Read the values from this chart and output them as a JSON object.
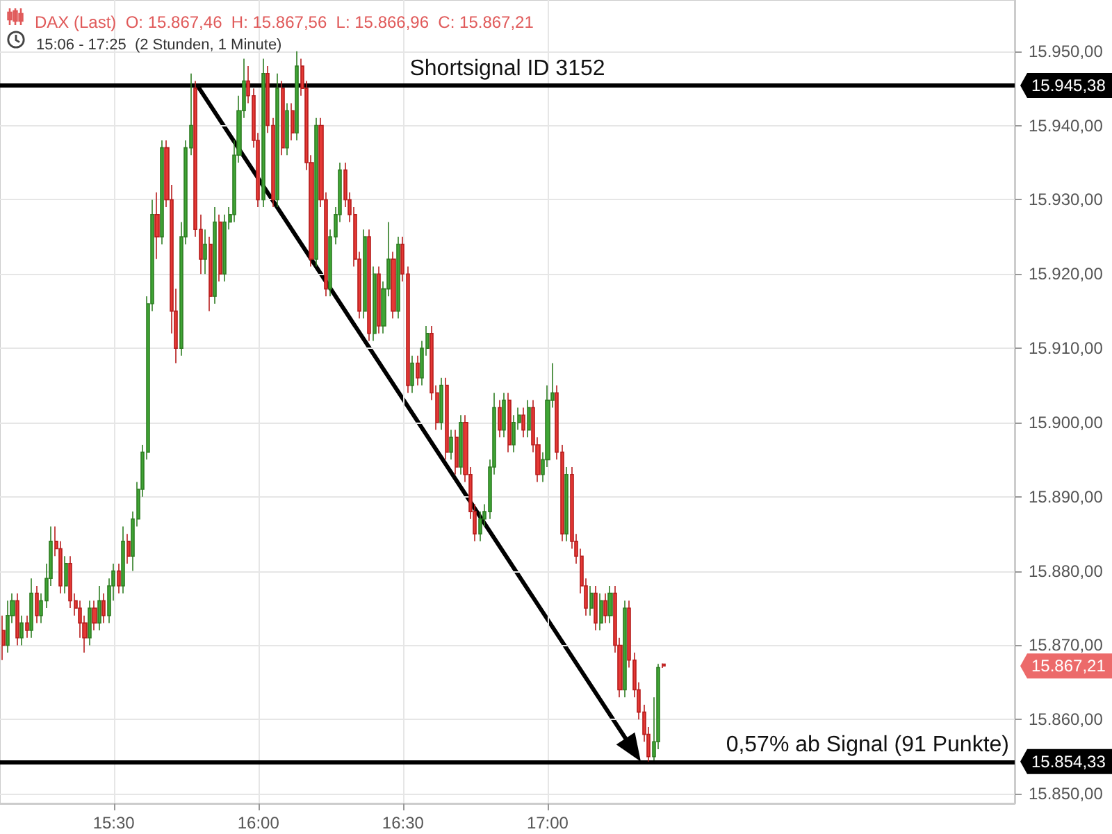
{
  "chart_data": {
    "type": "candlestick",
    "title": "DAX (Last)  O: 15.867,46  H: 15.867,56  L: 15.866,96  C: 15.867,21",
    "subtitle": "15:06 - 17:25  (2 Stunden, 1 Minute)",
    "annotations": [
      "15.945,38",
      "15.867,21",
      "15.854,33"
    ],
    "ref_lines": [
      {
        "axis": "y",
        "value": 15945.38,
        "label": "Shortsignal ID 3152",
        "color": "#000000"
      },
      {
        "axis": "y",
        "value": 15854.33,
        "label": "0,57% ab Signal (91 Punkte)",
        "color": "#000000"
      }
    ],
    "xlim": [
      15.1067,
      18.615
    ],
    "xticks": [
      {
        "value": 15.5,
        "label": "15:30"
      },
      {
        "value": 16,
        "label": "16:00"
      },
      {
        "value": 16.5,
        "label": "16:30"
      },
      {
        "value": 17,
        "label": "17:00"
      }
    ],
    "ylim": [
      15848.7,
      15956.9
    ],
    "yticks": [
      {
        "value": 15850,
        "label": "15.850,00"
      },
      {
        "value": 15860,
        "label": "15.860,00"
      },
      {
        "value": 15870,
        "label": "15.870,00"
      },
      {
        "value": 15880,
        "label": "15.880,00"
      },
      {
        "value": 15890,
        "label": "15.890,00"
      },
      {
        "value": 15900,
        "label": "15.900,00"
      },
      {
        "value": 15910,
        "label": "15.910,00"
      },
      {
        "value": 15920,
        "label": "15.920,00"
      },
      {
        "value": 15930,
        "label": "15.930,00"
      },
      {
        "value": 15940,
        "label": "15.940,00"
      },
      {
        "value": 15950,
        "label": "15.950,00"
      }
    ],
    "grid": true,
    "x": [
      15.1167,
      15.1333,
      15.15,
      15.1667,
      15.1833,
      15.2,
      15.2167,
      15.2333,
      15.25,
      15.2667,
      15.2833,
      15.3,
      15.3167,
      15.3333,
      15.35,
      15.3667,
      15.3833,
      15.4,
      15.4167,
      15.4333,
      15.45,
      15.4667,
      15.4833,
      15.5,
      15.5167,
      15.5333,
      15.55,
      15.5667,
      15.5833,
      15.6,
      15.6167,
      15.6333,
      15.65,
      15.6667,
      15.6833,
      15.7,
      15.7167,
      15.7333,
      15.75,
      15.7667,
      15.7833,
      15.8,
      15.8167,
      15.8333,
      15.85,
      15.8667,
      15.8833,
      15.9,
      15.9167,
      15.9333,
      15.95,
      15.9667,
      15.9833,
      16,
      16.0167,
      16.0333,
      16.05,
      16.0667,
      16.0833,
      16.1,
      16.1167,
      16.1333,
      16.15,
      16.1667,
      16.1833,
      16.2,
      16.2167,
      16.2333,
      16.25,
      16.2667,
      16.2833,
      16.3,
      16.3167,
      16.3333,
      16.35,
      16.3667,
      16.3833,
      16.4,
      16.4167,
      16.4333,
      16.45,
      16.4667,
      16.4833,
      16.5,
      16.5167,
      16.5333,
      16.55,
      16.5667,
      16.5833,
      16.6,
      16.6167,
      16.6333,
      16.65,
      16.6667,
      16.6833,
      16.7,
      16.7167,
      16.7333,
      16.75,
      16.7667,
      16.7833,
      16.8,
      16.8167,
      16.8333,
      16.85,
      16.8667,
      16.8833,
      16.9,
      16.9167,
      16.9333,
      16.95,
      16.9667,
      16.9833,
      17,
      17.0167,
      17.0333,
      17.05,
      17.0667,
      17.0833,
      17.1,
      17.1167,
      17.1333,
      17.15,
      17.1667,
      17.1833,
      17.2,
      17.2167,
      17.2333,
      17.25,
      17.2667,
      17.2833,
      17.3,
      17.3167,
      17.3333,
      17.35,
      17.3667,
      17.3833,
      17.4
    ],
    "ohlc": [
      [
        15872,
        15874,
        15868,
        15870
      ],
      [
        15870,
        15876,
        15869,
        15874
      ],
      [
        15874,
        15877,
        15873,
        15876
      ],
      [
        15876,
        15877,
        15870,
        15871
      ],
      [
        15871,
        15874,
        15870,
        15873
      ],
      [
        15873,
        15874,
        15871,
        15872
      ],
      [
        15872,
        15879,
        15871,
        15877
      ],
      [
        15877,
        15878,
        15873,
        15874
      ],
      [
        15874,
        15877,
        15873,
        15876
      ],
      [
        15876,
        15881,
        15875,
        15879
      ],
      [
        15879,
        15886,
        15878,
        15884
      ],
      [
        15884,
        15886,
        15882,
        15883
      ],
      [
        15883,
        15884,
        15877,
        15878
      ],
      [
        15878,
        15882,
        15877,
        15881
      ],
      [
        15881,
        15882,
        15875,
        15876
      ],
      [
        15876,
        15877,
        15874,
        15875
      ],
      [
        15875,
        15876,
        15871,
        15873
      ],
      [
        15873,
        15874,
        15869,
        15871
      ],
      [
        15871,
        15876,
        15870,
        15875
      ],
      [
        15875,
        15876,
        15872,
        15873
      ],
      [
        15873,
        15878,
        15872,
        15876
      ],
      [
        15876,
        15877,
        15873,
        15874
      ],
      [
        15874,
        15879,
        15873,
        15878
      ],
      [
        15878,
        15881,
        15876,
        15880
      ],
      [
        15880,
        15881,
        15877,
        15878
      ],
      [
        15878,
        15886,
        15877,
        15884
      ],
      [
        15884,
        15885,
        15881,
        15882
      ],
      [
        15882,
        15888,
        15880,
        15887
      ],
      [
        15887,
        15892,
        15886,
        15891
      ],
      [
        15891,
        15897,
        15890,
        15896
      ],
      [
        15896,
        15917,
        15895,
        15916
      ],
      [
        15916,
        15930,
        15915,
        15928
      ],
      [
        15928,
        15931,
        15922,
        15925
      ],
      [
        15925,
        15938,
        15924,
        15937
      ],
      [
        15937,
        15938,
        15929,
        15930
      ],
      [
        15930,
        15932,
        15912,
        15915
      ],
      [
        15915,
        15918,
        15908,
        15910
      ],
      [
        15910,
        15927,
        15909,
        15925
      ],
      [
        15925,
        15938,
        15924,
        15937
      ],
      [
        15937,
        15947,
        15936,
        15940
      ],
      [
        15945,
        15946,
        15925,
        15926
      ],
      [
        15926,
        15928,
        15920,
        15922
      ],
      [
        15922,
        15926,
        15920,
        15924
      ],
      [
        15924,
        15925,
        15915,
        15917
      ],
      [
        15917,
        15929,
        15916,
        15927
      ],
      [
        15927,
        15928,
        15919,
        15920
      ],
      [
        15920,
        15928,
        15919,
        15927
      ],
      [
        15927,
        15929,
        15926,
        15928
      ],
      [
        15928,
        15938,
        15927,
        15936
      ],
      [
        15936,
        15944,
        15935,
        15942
      ],
      [
        15942,
        15949,
        15941,
        15946
      ],
      [
        15946,
        15948,
        15943,
        15944
      ],
      [
        15944,
        15945,
        15937,
        15938
      ],
      [
        15938,
        15939,
        15929,
        15930
      ],
      [
        15930,
        15949,
        15929,
        15947
      ],
      [
        15947,
        15948,
        15939,
        15940
      ],
      [
        15940,
        15941,
        15929,
        15930
      ],
      [
        15930,
        15947,
        15929,
        15945
      ],
      [
        15945,
        15946,
        15936,
        15937
      ],
      [
        15937,
        15943,
        15936,
        15942
      ],
      [
        15942,
        15943,
        15938,
        15939
      ],
      [
        15939,
        15950,
        15938,
        15948
      ],
      [
        15948,
        15949,
        15944,
        15945
      ],
      [
        15945,
        15946,
        15934,
        15935
      ],
      [
        15935,
        15936,
        15921,
        15922
      ],
      [
        15922,
        15941,
        15921,
        15940
      ],
      [
        15940,
        15941,
        15929,
        15930
      ],
      [
        15930,
        15931,
        15917,
        15918
      ],
      [
        15918,
        15926,
        15917,
        15925
      ],
      [
        15925,
        15929,
        15924,
        15928
      ],
      [
        15928,
        15935,
        15927,
        15934
      ],
      [
        15934,
        15935,
        15929,
        15930
      ],
      [
        15930,
        15931,
        15927,
        15928
      ],
      [
        15928,
        15929,
        15921,
        15922
      ],
      [
        15922,
        15923,
        15914,
        15915
      ],
      [
        15915,
        15926,
        15914,
        15925
      ],
      [
        15925,
        15926,
        15911,
        15912
      ],
      [
        15912,
        15921,
        15911,
        15920
      ],
      [
        15920,
        15921,
        15912,
        15913
      ],
      [
        15913,
        15919,
        15912,
        15918
      ],
      [
        15918,
        15927,
        15917,
        15922
      ],
      [
        15922,
        15923,
        15914,
        15915
      ],
      [
        15915,
        15925,
        15914,
        15924
      ],
      [
        15924,
        15925,
        15919,
        15920
      ],
      [
        15920,
        15921,
        15904,
        15905
      ],
      [
        15905,
        15909,
        15904,
        15908
      ],
      [
        15908,
        15909,
        15905,
        15906
      ],
      [
        15906,
        15911,
        15905,
        15910
      ],
      [
        15910,
        15913,
        15909,
        15912
      ],
      [
        15912,
        15913,
        15903,
        15904
      ],
      [
        15904,
        15905,
        15899,
        15900
      ],
      [
        15900,
        15906,
        15899,
        15905
      ],
      [
        15905,
        15906,
        15895,
        15896
      ],
      [
        15896,
        15899,
        15895,
        15898
      ],
      [
        15898,
        15899,
        15893,
        15894
      ],
      [
        15894,
        15901,
        15893,
        15900
      ],
      [
        15900,
        15901,
        15892,
        15893
      ],
      [
        15893,
        15894,
        15887,
        15888
      ],
      [
        15888,
        15889,
        15884,
        15885
      ],
      [
        15885,
        15888,
        15884,
        15887
      ],
      [
        15887,
        15889,
        15886,
        15888
      ],
      [
        15888,
        15895,
        15887,
        15894
      ],
      [
        15894,
        15904,
        15893,
        15902
      ],
      [
        15902,
        15903,
        15898,
        15899
      ],
      [
        15899,
        15904,
        15898,
        15903
      ],
      [
        15903,
        15904,
        15896,
        15897
      ],
      [
        15897,
        15901,
        15896,
        15900
      ],
      [
        15900,
        15902,
        15899,
        15901
      ],
      [
        15901,
        15902,
        15898,
        15899
      ],
      [
        15899,
        15903,
        15898,
        15902
      ],
      [
        15902,
        15903,
        15896,
        15897
      ],
      [
        15897,
        15898,
        15892,
        15893
      ],
      [
        15893,
        15896,
        15892,
        15895
      ],
      [
        15895,
        15905,
        15894,
        15903
      ],
      [
        15903,
        15908,
        15902,
        15904
      ],
      [
        15904,
        15905,
        15895,
        15896
      ],
      [
        15896,
        15897,
        15884,
        15885
      ],
      [
        15885,
        15894,
        15884,
        15893
      ],
      [
        15893,
        15894,
        15883,
        15884
      ],
      [
        15884,
        15885,
        15881,
        15882
      ],
      [
        15882,
        15883,
        15877,
        15878
      ],
      [
        15878,
        15879,
        15874,
        15875
      ],
      [
        15875,
        15878,
        15874,
        15877
      ],
      [
        15877,
        15878,
        15872,
        15873
      ],
      [
        15873,
        15877,
        15872,
        15876
      ],
      [
        15876,
        15877,
        15873,
        15874
      ],
      [
        15874,
        15878,
        15873,
        15877
      ],
      [
        15877,
        15878,
        15869,
        15870
      ],
      [
        15870,
        15871,
        15863,
        15864
      ],
      [
        15864,
        15876,
        15863,
        15875
      ],
      [
        15875,
        15876,
        15867,
        15868
      ],
      [
        15868,
        15869,
        15863,
        15864
      ],
      [
        15864,
        15865,
        15860,
        15861
      ],
      [
        15861,
        15862,
        15857,
        15858
      ],
      [
        15858,
        15859,
        15854.33,
        15855
      ],
      [
        15855,
        15863,
        15854.5,
        15857
      ],
      [
        15857,
        15867.5,
        15856,
        15867
      ],
      [
        15867.46,
        15867.56,
        15866.96,
        15867.21
      ]
    ]
  }
}
